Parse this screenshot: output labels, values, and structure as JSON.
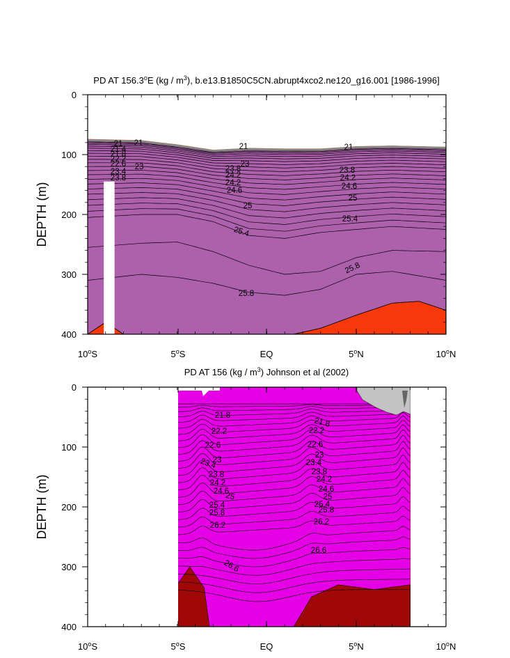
{
  "chart_data": [
    {
      "type": "contour",
      "title_parts": [
        "PD AT 156.3",
        "o",
        "E (kg / m",
        "3",
        "), b.e13.B1850C5CN.abrupt4xco2.ne120_g16.001 [1986-1996]"
      ],
      "ylabel": "DEPTH (m)",
      "ylim": [
        0,
        400
      ],
      "yticks": [
        0,
        100,
        200,
        300,
        400
      ],
      "xlim": [
        -10,
        10
      ],
      "xticks": [
        {
          "value": -10,
          "num": "10",
          "deg": "o",
          "hemi": "S"
        },
        {
          "value": -5,
          "num": "5",
          "deg": "o",
          "hemi": "S"
        },
        {
          "value": 0,
          "num": "EQ",
          "deg": "",
          "hemi": ""
        },
        {
          "value": 5,
          "num": "5",
          "deg": "o",
          "hemi": "N"
        },
        {
          "value": 10,
          "num": "10",
          "deg": "o",
          "hemi": "N"
        }
      ],
      "density_levels": [
        21,
        21.2,
        21.4,
        21.6,
        21.8,
        22,
        22.2,
        22.4,
        22.6,
        22.8,
        23,
        23.2,
        23.4,
        23.6,
        23.8,
        24,
        24.2,
        24.4,
        24.6,
        24.8,
        25,
        25.2,
        25.4,
        25.6,
        25.8,
        26
      ],
      "surface_depth_profile": {
        "lat": [
          -10,
          -7,
          -5,
          -3,
          -1,
          1,
          3,
          5,
          7,
          10
        ],
        "depth": [
          77,
          79,
          86,
          95,
          92,
          93,
          93,
          89,
          88,
          90
        ]
      },
      "isopycnal_depths": [
        {
          "sigma": 25.4,
          "lat": [
            -10,
            -7,
            -5,
            -3,
            -1,
            1,
            3,
            5,
            7,
            10
          ],
          "depth": [
            205,
            200,
            200,
            212,
            235,
            240,
            230,
            225,
            220,
            225
          ]
        },
        {
          "sigma": 25.6,
          "lat": [
            -10,
            -7,
            -5,
            -3,
            -1,
            1,
            3,
            5,
            7,
            10
          ],
          "depth": [
            255,
            248,
            246,
            262,
            285,
            300,
            295,
            272,
            260,
            262
          ]
        },
        {
          "sigma": 25.8,
          "lat": [
            -10,
            -7,
            -5,
            -3,
            -1,
            1,
            3,
            5,
            7,
            10
          ],
          "depth": [
            310,
            300,
            305,
            315,
            330,
            335,
            325,
            300,
            295,
            310
          ]
        },
        {
          "sigma": 26.0,
          "lat": [
            -10,
            -9,
            -8,
            1.5,
            3,
            5,
            7,
            8.5,
            10
          ],
          "depth": [
            400,
            380,
            400,
            400,
            390,
            368,
            348,
            345,
            360
          ]
        }
      ],
      "missing_data_band": {
        "lat": [
          -9.1,
          -8.5
        ],
        "depth": [
          145,
          400
        ]
      },
      "contour_labels": [
        "21",
        "21.4",
        "21.8",
        "22.2",
        "22.6",
        "23",
        "23.4",
        "23.8",
        "24.2",
        "24.6",
        "25",
        "25.4",
        "25.8",
        "23",
        "21",
        "21",
        "25"
      ]
    },
    {
      "type": "contour",
      "title_parts": [
        "PD AT 156 (kg / m",
        "3",
        ") Johnson et al (2002)"
      ],
      "ylabel": "DEPTH (m)",
      "ylim": [
        0,
        400
      ],
      "yticks": [
        0,
        100,
        200,
        300,
        400
      ],
      "xlim": [
        -10,
        10
      ],
      "data_xrange": [
        -5,
        8
      ],
      "xticks": [
        {
          "value": -10,
          "num": "10",
          "deg": "o",
          "hemi": "S"
        },
        {
          "value": -5,
          "num": "5",
          "deg": "o",
          "hemi": "S"
        },
        {
          "value": 0,
          "num": "EQ",
          "deg": "",
          "hemi": ""
        },
        {
          "value": 5,
          "num": "5",
          "deg": "o",
          "hemi": "N"
        },
        {
          "value": 10,
          "num": "10",
          "deg": "o",
          "hemi": "N"
        }
      ],
      "density_levels": [
        21.4,
        21.6,
        21.8,
        22,
        22.2,
        22.4,
        22.6,
        22.8,
        23,
        23.2,
        23.4,
        23.6,
        23.8,
        24,
        24.2,
        24.4,
        24.6,
        24.8,
        25,
        25.2,
        25.4,
        25.6,
        25.8,
        26,
        26.2,
        26.4,
        26.6,
        26.8
      ],
      "contour_labels": [
        "21.8",
        "22.2",
        "22.6",
        "23",
        "23.4",
        "23.8",
        "24.2",
        "24.6",
        "25",
        "25.4",
        "25.8",
        "26.2",
        "26.6",
        "21.8",
        "22.2",
        "22.6",
        "23",
        "23.4",
        "23.8",
        "24.2",
        "24.6",
        "25",
        "25.4",
        "25.8",
        "26.2",
        "26.6"
      ]
    }
  ]
}
